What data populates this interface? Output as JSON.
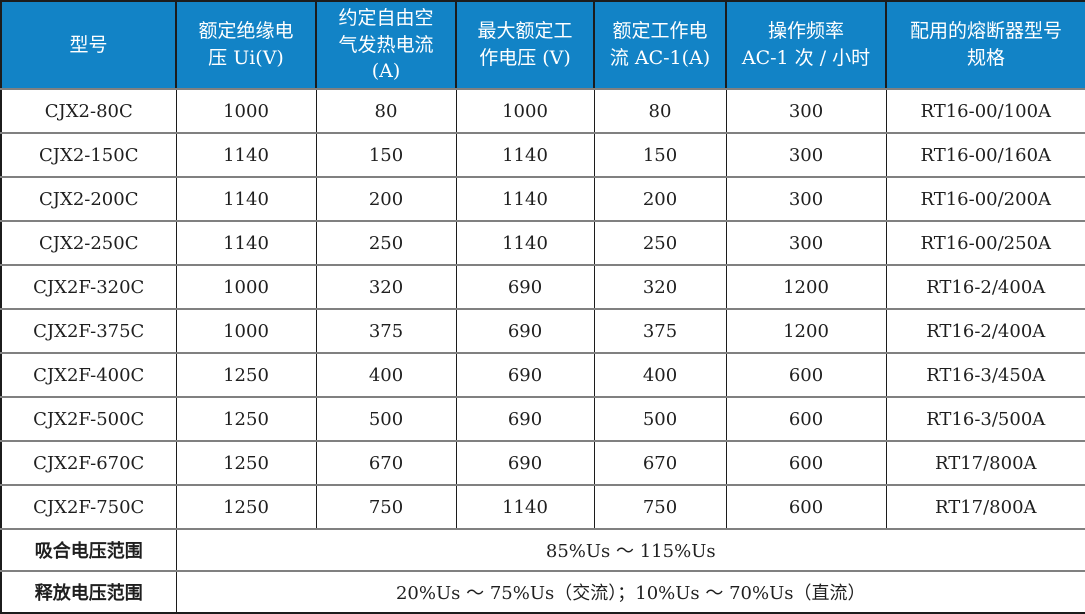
{
  "table": {
    "style": {
      "header_bg": "#1283c6",
      "header_text_color": "#ffffff",
      "outer_border_color": "#1c1c1c",
      "inner_line_color": "#808080",
      "body_text_color": "#1f1f1f"
    },
    "columns": [
      "型号",
      "额定绝缘电\n压 Ui(V)",
      "约定自由空\n气发热电流\n(A)",
      "最大额定工\n作电压 (V)",
      "额定工作电\n流 AC-1(A)",
      "操作频率\nAC-1 次 / 小时",
      "配用的熔断器型号\n规格"
    ],
    "rows": [
      {
        "model": "CJX2-80C",
        "values": [
          "1000",
          "80",
          "1000",
          "80",
          "300",
          "RT16-00/100A"
        ]
      },
      {
        "model": "CJX2-150C",
        "values": [
          "1140",
          "150",
          "1140",
          "150",
          "300",
          "RT16-00/160A"
        ]
      },
      {
        "model": "CJX2-200C",
        "values": [
          "1140",
          "200",
          "1140",
          "200",
          "300",
          "RT16-00/200A"
        ]
      },
      {
        "model": "CJX2-250C",
        "values": [
          "1140",
          "250",
          "1140",
          "250",
          "300",
          "RT16-00/250A"
        ]
      },
      {
        "model": "CJX2F-320C",
        "values": [
          "1000",
          "320",
          "690",
          "320",
          "1200",
          "RT16-2/400A"
        ]
      },
      {
        "model": "CJX2F-375C",
        "values": [
          "1000",
          "375",
          "690",
          "375",
          "1200",
          "RT16-2/400A"
        ]
      },
      {
        "model": "CJX2F-400C",
        "values": [
          "1250",
          "400",
          "690",
          "400",
          "600",
          "RT16-3/450A"
        ]
      },
      {
        "model": "CJX2F-500C",
        "values": [
          "1250",
          "500",
          "690",
          "500",
          "600",
          "RT16-3/500A"
        ]
      },
      {
        "model": "CJX2F-670C",
        "values": [
          "1250",
          "670",
          "690",
          "670",
          "600",
          "RT17/800A"
        ]
      },
      {
        "model": "CJX2F-750C",
        "values": [
          "1250",
          "750",
          "1140",
          "750",
          "600",
          "RT17/800A"
        ]
      }
    ],
    "footer_rows": [
      {
        "label": "吸合电压范围",
        "value": "85%Us ～ 115%Us"
      },
      {
        "label": "释放电压范围",
        "value": "20%Us ～ 75%Us（交流）；10%Us ～ 70%Us（直流）"
      }
    ]
  },
  "chart_data": {
    "type": "table",
    "title": "",
    "columns": [
      "型号",
      "额定绝缘电压 Ui(V)",
      "约定自由空气发热电流(A)",
      "最大额定工作电压(V)",
      "额定工作电流 AC-1(A)",
      "操作频率 AC-1 次 / 小时",
      "配用的熔断器型号规格"
    ],
    "rows": [
      [
        "CJX2-80C",
        "1000",
        "80",
        "1000",
        "80",
        "300",
        "RT16-00/100A"
      ],
      [
        "CJX2-150C",
        "1140",
        "150",
        "1140",
        "150",
        "300",
        "RT16-00/160A"
      ],
      [
        "CJX2-200C",
        "1140",
        "200",
        "1140",
        "200",
        "300",
        "RT16-00/200A"
      ],
      [
        "CJX2-250C",
        "1140",
        "250",
        "1140",
        "250",
        "300",
        "RT16-00/250A"
      ],
      [
        "CJX2F-320C",
        "1000",
        "320",
        "690",
        "320",
        "1200",
        "RT16-2/400A"
      ],
      [
        "CJX2F-375C",
        "1000",
        "375",
        "690",
        "375",
        "1200",
        "RT16-2/400A"
      ],
      [
        "CJX2F-400C",
        "1250",
        "400",
        "690",
        "400",
        "600",
        "RT16-3/450A"
      ],
      [
        "CJX2F-500C",
        "1250",
        "500",
        "690",
        "500",
        "600",
        "RT16-3/500A"
      ],
      [
        "CJX2F-670C",
        "1250",
        "670",
        "690",
        "670",
        "600",
        "RT17/800A"
      ],
      [
        "CJX2F-750C",
        "1250",
        "750",
        "1140",
        "750",
        "600",
        "RT17/800A"
      ],
      [
        "吸合电压范围",
        "85%Us ～ 115%Us"
      ],
      [
        "释放电压范围",
        "20%Us ～ 75%Us（交流）；10%Us ～ 70%Us（直流）"
      ]
    ]
  }
}
